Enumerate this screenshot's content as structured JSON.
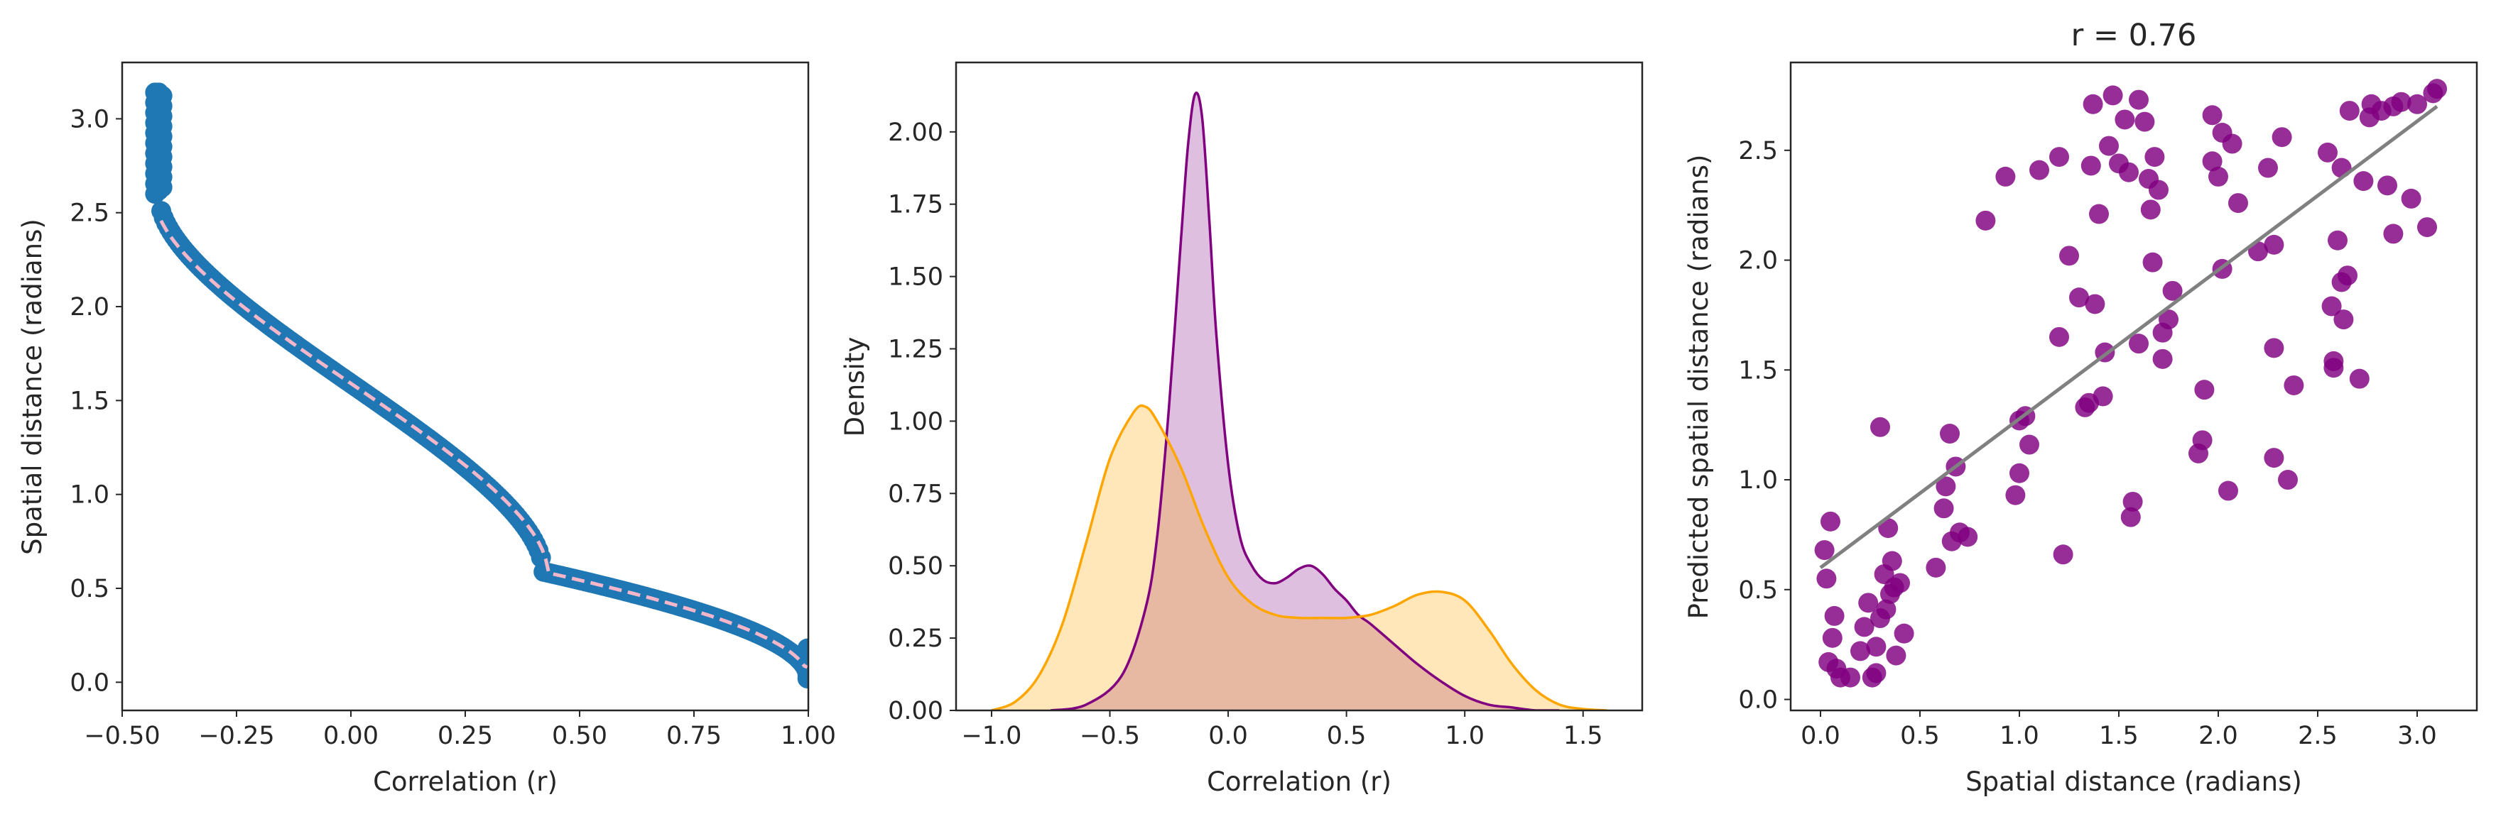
{
  "colors": {
    "scatter_blue": "#1f77b4",
    "dashed_pink": "#f4b6c8",
    "purple": "#800080",
    "orange": "#ffa500",
    "fit_line": "#808080",
    "axis": "#262626"
  },
  "chart_data": [
    {
      "type": "scatter",
      "title": "",
      "xlabel": "Correlation (r)",
      "ylabel": "Spatial distance (radians)",
      "xlim": [
        -0.5,
        1.0
      ],
      "ylim": [
        -0.15,
        3.3
      ],
      "xticks": [
        "−0.50",
        "−0.25",
        "0.00",
        "0.25",
        "0.50",
        "0.75",
        "1.00"
      ],
      "xtick_values": [
        -0.5,
        -0.25,
        0.0,
        0.25,
        0.5,
        0.75,
        1.0
      ],
      "yticks": [
        "0.0",
        "0.5",
        "1.0",
        "1.5",
        "2.0",
        "2.5",
        "3.0"
      ],
      "ytick_values": [
        0.0,
        0.5,
        1.0,
        1.5,
        2.0,
        2.5,
        3.0
      ],
      "grid": false,
      "series": [
        {
          "kind": "scatter",
          "color": "#1f77b4",
          "relation": "y = arccos(r / 0.42) mixed with arccos(r)",
          "x_range": [
            -0.42,
            1.0
          ],
          "y_range": [
            0.02,
            3.14
          ]
        },
        {
          "kind": "dashed-line",
          "color": "#f4b6c8",
          "y_range": [
            0.08,
            2.85
          ]
        }
      ]
    },
    {
      "type": "area",
      "title": "",
      "xlabel": "Correlation (r)",
      "ylabel": "Density",
      "xlim": [
        -1.15,
        1.75
      ],
      "ylim": [
        0.0,
        2.24
      ],
      "xticks": [
        "−1.0",
        "−0.5",
        "0.0",
        "0.5",
        "1.0",
        "1.5"
      ],
      "xtick_values": [
        -1.0,
        -0.5,
        0.0,
        0.5,
        1.0,
        1.5
      ],
      "yticks": [
        "0.00",
        "0.25",
        "0.50",
        "0.75",
        "1.00",
        "1.25",
        "1.50",
        "1.75",
        "2.00"
      ],
      "ytick_values": [
        0.0,
        0.25,
        0.5,
        0.75,
        1.0,
        1.25,
        1.5,
        1.75,
        2.0
      ],
      "grid": false,
      "series": [
        {
          "color": "#800080",
          "x": [
            -0.75,
            -0.6,
            -0.45,
            -0.35,
            -0.3,
            -0.25,
            -0.2,
            -0.17,
            -0.14,
            -0.11,
            -0.08,
            -0.05,
            0.0,
            0.05,
            0.1,
            0.15,
            0.2,
            0.25,
            0.3,
            0.35,
            0.4,
            0.45,
            0.5,
            0.55,
            0.6,
            0.7,
            0.8,
            0.9,
            1.0,
            1.1,
            1.2,
            1.3,
            1.4
          ],
          "values": [
            0.0,
            0.02,
            0.12,
            0.35,
            0.6,
            1.05,
            1.62,
            1.95,
            2.13,
            2.05,
            1.7,
            1.3,
            0.85,
            0.6,
            0.5,
            0.45,
            0.44,
            0.46,
            0.49,
            0.5,
            0.47,
            0.42,
            0.38,
            0.33,
            0.3,
            0.23,
            0.16,
            0.1,
            0.05,
            0.02,
            0.01,
            0.0,
            0.0
          ]
        },
        {
          "color": "#ffa500",
          "x": [
            -1.0,
            -0.9,
            -0.8,
            -0.7,
            -0.6,
            -0.5,
            -0.4,
            -0.35,
            -0.3,
            -0.2,
            -0.1,
            0.0,
            0.1,
            0.2,
            0.3,
            0.4,
            0.5,
            0.6,
            0.7,
            0.8,
            0.9,
            1.0,
            1.1,
            1.2,
            1.3,
            1.4,
            1.5,
            1.6
          ],
          "values": [
            0.0,
            0.03,
            0.12,
            0.3,
            0.58,
            0.87,
            1.03,
            1.05,
            1.0,
            0.84,
            0.63,
            0.46,
            0.37,
            0.33,
            0.32,
            0.32,
            0.32,
            0.33,
            0.36,
            0.4,
            0.41,
            0.38,
            0.28,
            0.16,
            0.07,
            0.02,
            0.005,
            0.0
          ]
        }
      ]
    },
    {
      "type": "scatter",
      "title": "r = 0.76",
      "xlabel": "Spatial distance (radians)",
      "ylabel": "Predicted spatial distance (radians)",
      "xlim": [
        -0.15,
        3.3
      ],
      "ylim": [
        -0.05,
        2.9
      ],
      "xticks": [
        "0.0",
        "0.5",
        "1.0",
        "1.5",
        "2.0",
        "2.5",
        "3.0"
      ],
      "xtick_values": [
        0.0,
        0.5,
        1.0,
        1.5,
        2.0,
        2.5,
        3.0
      ],
      "yticks": [
        "0.0",
        "0.5",
        "1.0",
        "1.5",
        "2.0",
        "2.5"
      ],
      "ytick_values": [
        0.0,
        0.5,
        1.0,
        1.5,
        2.0,
        2.5
      ],
      "grid": false,
      "points": [
        [
          0.02,
          0.68
        ],
        [
          0.03,
          0.55
        ],
        [
          0.05,
          0.81
        ],
        [
          0.07,
          0.38
        ],
        [
          0.04,
          0.17
        ],
        [
          0.06,
          0.28
        ],
        [
          0.08,
          0.14
        ],
        [
          0.1,
          0.1
        ],
        [
          0.15,
          0.1
        ],
        [
          0.2,
          0.22
        ],
        [
          0.22,
          0.33
        ],
        [
          0.24,
          0.44
        ],
        [
          0.26,
          0.1
        ],
        [
          0.28,
          0.12
        ],
        [
          0.28,
          0.24
        ],
        [
          0.3,
          1.24
        ],
        [
          0.3,
          0.37
        ],
        [
          0.32,
          0.57
        ],
        [
          0.33,
          0.41
        ],
        [
          0.34,
          0.78
        ],
        [
          0.35,
          0.48
        ],
        [
          0.36,
          0.63
        ],
        [
          0.37,
          0.51
        ],
        [
          0.38,
          0.2
        ],
        [
          0.4,
          0.53
        ],
        [
          0.42,
          0.3
        ],
        [
          0.58,
          0.6
        ],
        [
          0.62,
          0.87
        ],
        [
          0.63,
          0.97
        ],
        [
          0.65,
          1.21
        ],
        [
          0.66,
          0.72
        ],
        [
          0.68,
          1.06
        ],
        [
          0.7,
          0.76
        ],
        [
          0.74,
          0.74
        ],
        [
          0.83,
          2.18
        ],
        [
          0.93,
          2.38
        ],
        [
          0.98,
          0.93
        ],
        [
          1.0,
          1.03
        ],
        [
          1.0,
          1.27
        ],
        [
          1.03,
          1.29
        ],
        [
          1.05,
          1.16
        ],
        [
          1.1,
          2.41
        ],
        [
          1.2,
          2.47
        ],
        [
          1.2,
          1.65
        ],
        [
          1.22,
          0.66
        ],
        [
          1.25,
          2.02
        ],
        [
          1.3,
          1.83
        ],
        [
          1.33,
          1.33
        ],
        [
          1.35,
          1.35
        ],
        [
          1.36,
          2.43
        ],
        [
          1.37,
          2.71
        ],
        [
          1.38,
          1.8
        ],
        [
          1.4,
          2.21
        ],
        [
          1.42,
          1.38
        ],
        [
          1.43,
          1.58
        ],
        [
          1.45,
          2.52
        ],
        [
          1.47,
          2.75
        ],
        [
          1.5,
          2.44
        ],
        [
          1.53,
          2.64
        ],
        [
          1.55,
          2.4
        ],
        [
          1.56,
          0.83
        ],
        [
          1.57,
          0.9
        ],
        [
          1.6,
          1.62
        ],
        [
          1.6,
          2.73
        ],
        [
          1.63,
          2.63
        ],
        [
          1.65,
          2.37
        ],
        [
          1.66,
          2.23
        ],
        [
          1.67,
          1.99
        ],
        [
          1.68,
          2.47
        ],
        [
          1.7,
          2.32
        ],
        [
          1.72,
          1.67
        ],
        [
          1.72,
          1.55
        ],
        [
          1.75,
          1.73
        ],
        [
          1.77,
          1.86
        ],
        [
          1.9,
          1.12
        ],
        [
          1.92,
          1.18
        ],
        [
          1.93,
          1.41
        ],
        [
          1.97,
          2.66
        ],
        [
          1.97,
          2.45
        ],
        [
          2.0,
          2.38
        ],
        [
          2.02,
          2.58
        ],
        [
          2.02,
          1.96
        ],
        [
          2.05,
          0.95
        ],
        [
          2.07,
          2.53
        ],
        [
          2.1,
          2.26
        ],
        [
          2.2,
          2.04
        ],
        [
          2.25,
          2.42
        ],
        [
          2.28,
          2.07
        ],
        [
          2.28,
          1.6
        ],
        [
          2.28,
          1.1
        ],
        [
          2.32,
          2.56
        ],
        [
          2.35,
          1.0
        ],
        [
          2.38,
          1.43
        ],
        [
          2.55,
          2.49
        ],
        [
          2.57,
          1.79
        ],
        [
          2.58,
          1.51
        ],
        [
          2.58,
          1.54
        ],
        [
          2.6,
          2.09
        ],
        [
          2.62,
          2.42
        ],
        [
          2.62,
          1.9
        ],
        [
          2.63,
          1.73
        ],
        [
          2.65,
          1.93
        ],
        [
          2.66,
          2.68
        ],
        [
          2.71,
          1.46
        ],
        [
          2.73,
          2.36
        ],
        [
          2.76,
          2.65
        ],
        [
          2.77,
          2.71
        ],
        [
          2.82,
          2.68
        ],
        [
          2.85,
          2.34
        ],
        [
          2.88,
          2.12
        ],
        [
          2.88,
          2.7
        ],
        [
          2.92,
          2.72
        ],
        [
          2.97,
          2.28
        ],
        [
          3.0,
          2.71
        ],
        [
          3.05,
          2.15
        ],
        [
          3.08,
          2.76
        ],
        [
          3.1,
          2.78
        ]
      ],
      "fit_line": {
        "x": [
          0.0,
          3.1
        ],
        "y": [
          0.6,
          2.7
        ]
      }
    }
  ]
}
